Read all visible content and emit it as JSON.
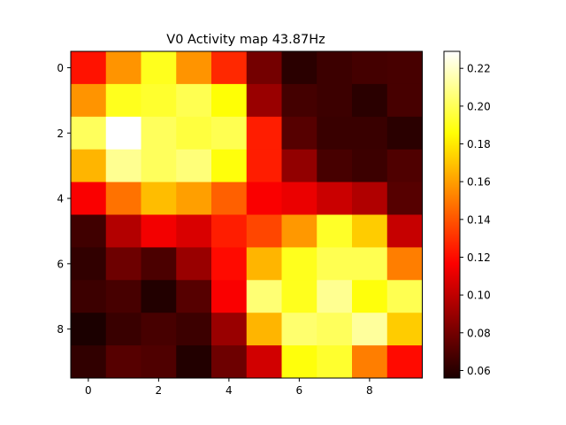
{
  "chart_data": {
    "type": "heatmap",
    "title": "V0 Activity map 43.87Hz",
    "xlabel": "",
    "ylabel": "",
    "colormap": "hot",
    "x_ticks": [
      0,
      2,
      4,
      6,
      8
    ],
    "y_ticks": [
      0,
      2,
      4,
      6,
      8
    ],
    "x_tick_labels": [
      "0",
      "2",
      "4",
      "6",
      "8"
    ],
    "y_tick_labels": [
      "0",
      "2",
      "4",
      "6",
      "8"
    ],
    "colorbar": {
      "vmin": 0.056,
      "vmax": 0.229,
      "ticks": [
        0.06,
        0.08,
        0.1,
        0.12,
        0.14,
        0.16,
        0.18,
        0.2,
        0.22
      ],
      "tick_labels": [
        "0.06",
        "0.08",
        "0.10",
        "0.12",
        "0.14",
        "0.16",
        "0.18",
        "0.20",
        "0.22"
      ]
    },
    "values": [
      [
        0.122,
        0.157,
        0.19,
        0.157,
        0.128,
        0.08,
        0.06,
        0.065,
        0.067,
        0.068
      ],
      [
        0.157,
        0.19,
        0.193,
        0.199,
        0.186,
        0.09,
        0.067,
        0.065,
        0.06,
        0.068
      ],
      [
        0.201,
        0.229,
        0.201,
        0.196,
        0.199,
        0.125,
        0.072,
        0.064,
        0.064,
        0.06
      ],
      [
        0.166,
        0.21,
        0.201,
        0.206,
        0.187,
        0.125,
        0.088,
        0.068,
        0.065,
        0.07
      ],
      [
        0.116,
        0.148,
        0.168,
        0.16,
        0.143,
        0.116,
        0.112,
        0.103,
        0.096,
        0.072
      ],
      [
        0.066,
        0.097,
        0.114,
        0.107,
        0.125,
        0.136,
        0.158,
        0.192,
        0.172,
        0.102
      ],
      [
        0.062,
        0.078,
        0.069,
        0.09,
        0.12,
        0.166,
        0.19,
        0.199,
        0.199,
        0.151
      ],
      [
        0.065,
        0.068,
        0.058,
        0.072,
        0.116,
        0.205,
        0.19,
        0.21,
        0.187,
        0.199
      ],
      [
        0.056,
        0.064,
        0.068,
        0.065,
        0.09,
        0.166,
        0.204,
        0.201,
        0.212,
        0.172
      ],
      [
        0.062,
        0.072,
        0.07,
        0.058,
        0.078,
        0.105,
        0.187,
        0.193,
        0.151,
        0.12
      ]
    ]
  }
}
